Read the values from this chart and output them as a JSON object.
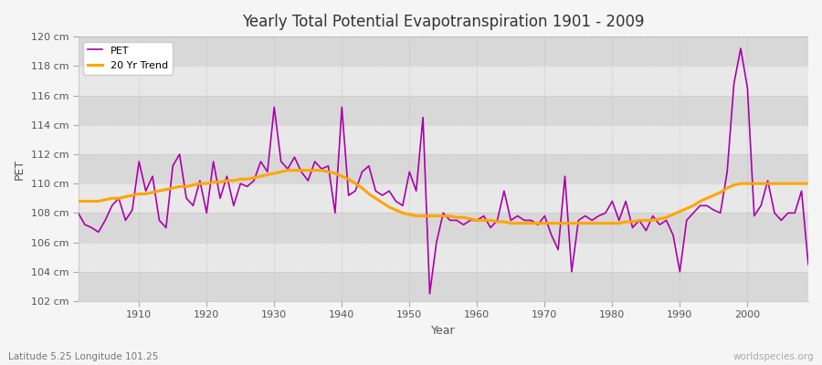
{
  "title": "Yearly Total Potential Evapotranspiration 1901 - 2009",
  "xlabel": "Year",
  "ylabel": "PET",
  "subtitle_left": "Latitude 5.25 Longitude 101.25",
  "subtitle_right": "worldspecies.org",
  "xlim": [
    1901,
    2009
  ],
  "ylim": [
    102,
    120
  ],
  "yticks": [
    102,
    104,
    106,
    108,
    110,
    112,
    114,
    116,
    118,
    120
  ],
  "ytick_labels": [
    "102 cm",
    "104 cm",
    "106 cm",
    "108 cm",
    "110 cm",
    "112 cm",
    "114 cm",
    "116 cm",
    "118 cm",
    "120 cm"
  ],
  "xticks": [
    1910,
    1920,
    1930,
    1940,
    1950,
    1960,
    1970,
    1980,
    1990,
    2000
  ],
  "pet_color": "#aa00aa",
  "trend_color": "#ffa500",
  "bg_color": "#f5f5f5",
  "plot_bg_color": "#e8e8e8",
  "band_color": "#d8d8d8",
  "grid_color": "#ffffff",
  "years": [
    1901,
    1902,
    1903,
    1904,
    1905,
    1906,
    1907,
    1908,
    1909,
    1910,
    1911,
    1912,
    1913,
    1914,
    1915,
    1916,
    1917,
    1918,
    1919,
    1920,
    1921,
    1922,
    1923,
    1924,
    1925,
    1926,
    1927,
    1928,
    1929,
    1930,
    1931,
    1932,
    1933,
    1934,
    1935,
    1936,
    1937,
    1938,
    1939,
    1940,
    1941,
    1942,
    1943,
    1944,
    1945,
    1946,
    1947,
    1948,
    1949,
    1950,
    1951,
    1952,
    1953,
    1954,
    1955,
    1956,
    1957,
    1958,
    1959,
    1960,
    1961,
    1962,
    1963,
    1964,
    1965,
    1966,
    1967,
    1968,
    1969,
    1970,
    1971,
    1972,
    1973,
    1974,
    1975,
    1976,
    1977,
    1978,
    1979,
    1980,
    1981,
    1982,
    1983,
    1984,
    1985,
    1986,
    1987,
    1988,
    1989,
    1990,
    1991,
    1992,
    1993,
    1994,
    1995,
    1996,
    1997,
    1998,
    1999,
    2000,
    2001,
    2002,
    2003,
    2004,
    2005,
    2006,
    2007,
    2008,
    2009
  ],
  "pet_values": [
    108.0,
    107.2,
    107.0,
    106.7,
    107.5,
    108.5,
    109.0,
    107.5,
    108.2,
    111.5,
    109.5,
    110.5,
    107.5,
    107.0,
    111.2,
    112.0,
    109.0,
    108.5,
    110.2,
    108.0,
    111.5,
    109.0,
    110.5,
    108.5,
    110.0,
    109.8,
    110.2,
    111.5,
    110.8,
    115.2,
    111.5,
    111.0,
    111.8,
    110.8,
    110.2,
    111.5,
    111.0,
    111.2,
    108.0,
    115.2,
    109.2,
    109.5,
    110.8,
    111.2,
    109.5,
    109.2,
    109.5,
    108.8,
    108.5,
    110.8,
    109.5,
    114.5,
    102.5,
    106.0,
    108.0,
    107.5,
    107.5,
    107.2,
    107.5,
    107.5,
    107.8,
    107.0,
    107.5,
    109.5,
    107.5,
    107.8,
    107.5,
    107.5,
    107.2,
    107.8,
    106.5,
    105.5,
    110.5,
    104.0,
    107.5,
    107.8,
    107.5,
    107.8,
    108.0,
    108.8,
    107.5,
    108.8,
    107.0,
    107.5,
    106.8,
    107.8,
    107.2,
    107.5,
    106.5,
    104.0,
    107.5,
    108.0,
    108.5,
    108.5,
    108.2,
    108.0,
    110.8,
    116.8,
    119.2,
    116.5,
    107.8,
    108.5,
    110.2,
    108.0,
    107.5,
    108.0,
    108.0,
    109.5,
    104.5
  ],
  "trend_values": [
    108.8,
    108.8,
    108.8,
    108.8,
    108.9,
    109.0,
    109.0,
    109.1,
    109.2,
    109.3,
    109.3,
    109.4,
    109.5,
    109.6,
    109.7,
    109.8,
    109.8,
    109.9,
    110.0,
    110.0,
    110.1,
    110.1,
    110.2,
    110.2,
    110.3,
    110.3,
    110.4,
    110.5,
    110.6,
    110.7,
    110.8,
    110.9,
    110.9,
    110.9,
    110.9,
    110.9,
    110.9,
    110.8,
    110.7,
    110.5,
    110.3,
    110.0,
    109.7,
    109.3,
    109.0,
    108.7,
    108.4,
    108.2,
    108.0,
    107.9,
    107.8,
    107.8,
    107.8,
    107.8,
    107.8,
    107.8,
    107.7,
    107.7,
    107.6,
    107.5,
    107.5,
    107.5,
    107.4,
    107.4,
    107.3,
    107.3,
    107.3,
    107.3,
    107.3,
    107.3,
    107.3,
    107.3,
    107.3,
    107.3,
    107.3,
    107.3,
    107.3,
    107.3,
    107.3,
    107.3,
    107.3,
    107.4,
    107.4,
    107.5,
    107.5,
    107.5,
    107.6,
    107.7,
    107.9,
    108.1,
    108.3,
    108.5,
    108.8,
    109.0,
    109.2,
    109.4,
    109.7,
    109.9,
    110.0,
    110.0,
    110.0,
    110.0,
    110.0,
    110.0,
    110.0,
    110.0,
    110.0,
    110.0,
    110.0
  ]
}
